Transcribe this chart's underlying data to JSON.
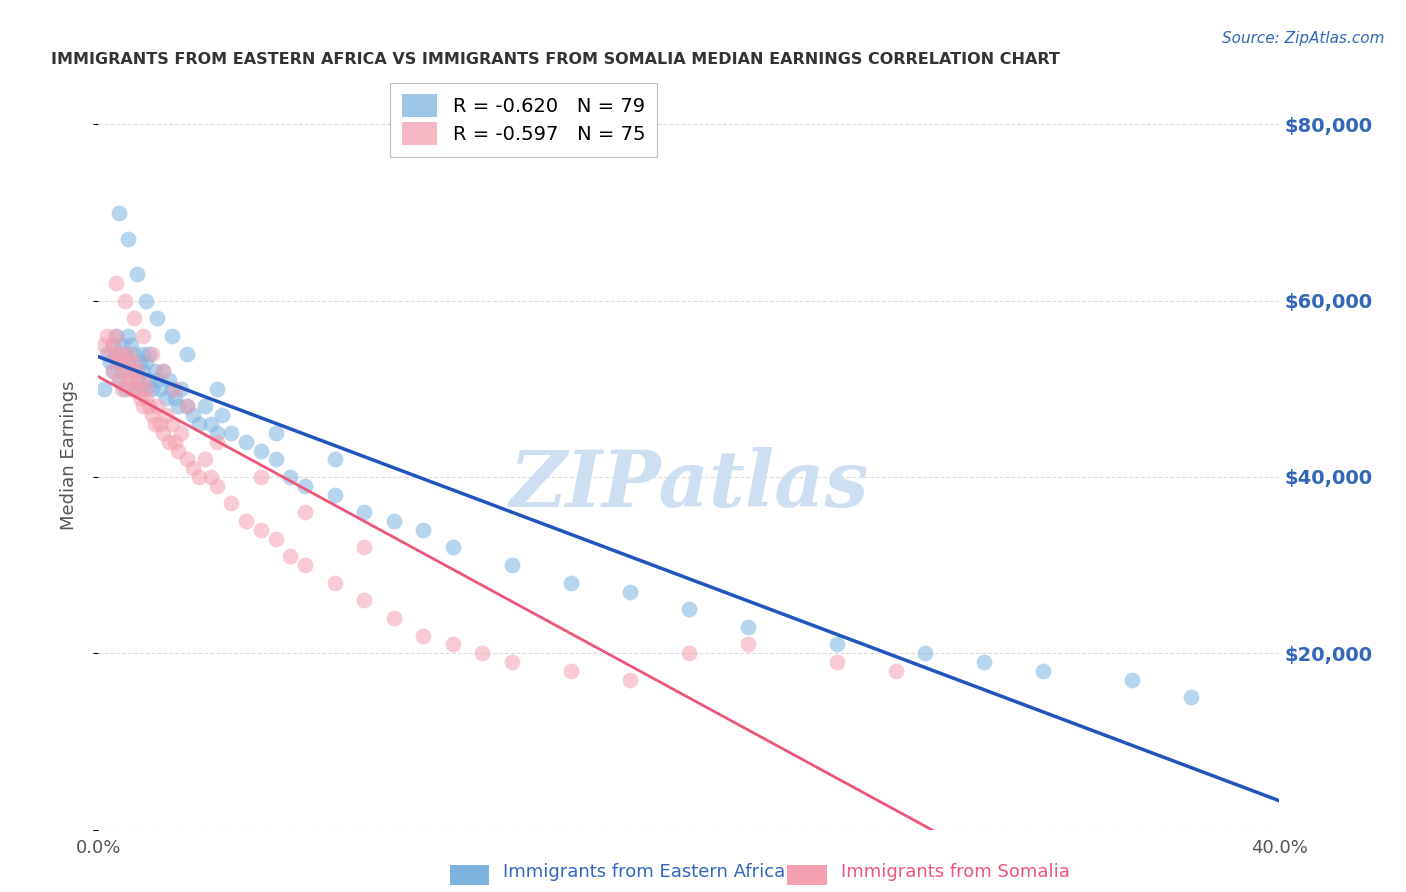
{
  "title": "IMMIGRANTS FROM EASTERN AFRICA VS IMMIGRANTS FROM SOMALIA MEDIAN EARNINGS CORRELATION CHART",
  "source": "Source: ZipAtlas.com",
  "ylabel": "Median Earnings",
  "series1_label": "Immigrants from Eastern Africa",
  "series1_R": "-0.620",
  "series1_N": "79",
  "series2_label": "Immigrants from Somalia",
  "series2_R": "-0.597",
  "series2_N": "75",
  "series1_color": "#7EB3E0",
  "series2_color": "#F4A0B0",
  "line1_color": "#2255BB",
  "line2_color": "#EE5577",
  "watermark_color": "#C8DCF0",
  "xlim": [
    0.0,
    0.4
  ],
  "ylim": [
    0,
    85000
  ],
  "yticks": [
    0,
    20000,
    40000,
    60000,
    80000
  ],
  "background_color": "#ffffff",
  "grid_color": "#cccccc",
  "title_color": "#333333",
  "axis_label_color": "#3366BB",
  "series1_x": [
    0.002,
    0.003,
    0.004,
    0.005,
    0.005,
    0.006,
    0.006,
    0.007,
    0.007,
    0.008,
    0.008,
    0.009,
    0.009,
    0.01,
    0.01,
    0.011,
    0.011,
    0.012,
    0.012,
    0.013,
    0.013,
    0.014,
    0.014,
    0.015,
    0.015,
    0.016,
    0.016,
    0.017,
    0.017,
    0.018,
    0.019,
    0.02,
    0.021,
    0.022,
    0.023,
    0.024,
    0.025,
    0.026,
    0.027,
    0.028,
    0.03,
    0.032,
    0.034,
    0.036,
    0.038,
    0.04,
    0.042,
    0.045,
    0.05,
    0.055,
    0.06,
    0.065,
    0.07,
    0.08,
    0.09,
    0.1,
    0.11,
    0.12,
    0.14,
    0.16,
    0.18,
    0.2,
    0.22,
    0.25,
    0.28,
    0.3,
    0.32,
    0.35,
    0.37,
    0.007,
    0.01,
    0.013,
    0.016,
    0.02,
    0.025,
    0.03,
    0.04,
    0.06,
    0.08
  ],
  "series1_y": [
    50000,
    54000,
    53000,
    52000,
    55000,
    56000,
    54000,
    53000,
    51000,
    55000,
    52000,
    54000,
    50000,
    56000,
    53000,
    52000,
    55000,
    50000,
    54000,
    52000,
    51000,
    53000,
    50000,
    54000,
    52000,
    50000,
    53000,
    51000,
    54000,
    50000,
    52000,
    51000,
    50000,
    52000,
    49000,
    51000,
    50000,
    49000,
    48000,
    50000,
    48000,
    47000,
    46000,
    48000,
    46000,
    45000,
    47000,
    45000,
    44000,
    43000,
    42000,
    40000,
    39000,
    38000,
    36000,
    35000,
    34000,
    32000,
    30000,
    28000,
    27000,
    25000,
    23000,
    21000,
    20000,
    19000,
    18000,
    17000,
    15000,
    70000,
    67000,
    63000,
    60000,
    58000,
    56000,
    54000,
    50000,
    45000,
    42000
  ],
  "series2_x": [
    0.002,
    0.003,
    0.004,
    0.005,
    0.005,
    0.006,
    0.006,
    0.007,
    0.007,
    0.008,
    0.008,
    0.009,
    0.009,
    0.01,
    0.01,
    0.011,
    0.011,
    0.012,
    0.012,
    0.013,
    0.013,
    0.014,
    0.015,
    0.015,
    0.016,
    0.016,
    0.017,
    0.018,
    0.019,
    0.02,
    0.021,
    0.022,
    0.023,
    0.024,
    0.025,
    0.026,
    0.027,
    0.028,
    0.03,
    0.032,
    0.034,
    0.036,
    0.038,
    0.04,
    0.045,
    0.05,
    0.055,
    0.06,
    0.065,
    0.07,
    0.08,
    0.09,
    0.1,
    0.11,
    0.12,
    0.14,
    0.16,
    0.18,
    0.2,
    0.22,
    0.25,
    0.27,
    0.006,
    0.009,
    0.012,
    0.015,
    0.018,
    0.022,
    0.026,
    0.03,
    0.04,
    0.055,
    0.07,
    0.09,
    0.13
  ],
  "series2_y": [
    55000,
    56000,
    54000,
    55000,
    52000,
    54000,
    56000,
    53000,
    51000,
    54000,
    50000,
    52000,
    53000,
    51000,
    54000,
    52000,
    50000,
    53000,
    51000,
    52000,
    50000,
    49000,
    51000,
    48000,
    50000,
    49000,
    48000,
    47000,
    46000,
    48000,
    46000,
    45000,
    47000,
    44000,
    46000,
    44000,
    43000,
    45000,
    42000,
    41000,
    40000,
    42000,
    40000,
    39000,
    37000,
    35000,
    34000,
    33000,
    31000,
    30000,
    28000,
    26000,
    24000,
    22000,
    21000,
    19000,
    18000,
    17000,
    20000,
    21000,
    19000,
    18000,
    62000,
    60000,
    58000,
    56000,
    54000,
    52000,
    50000,
    48000,
    44000,
    40000,
    36000,
    32000,
    20000
  ]
}
